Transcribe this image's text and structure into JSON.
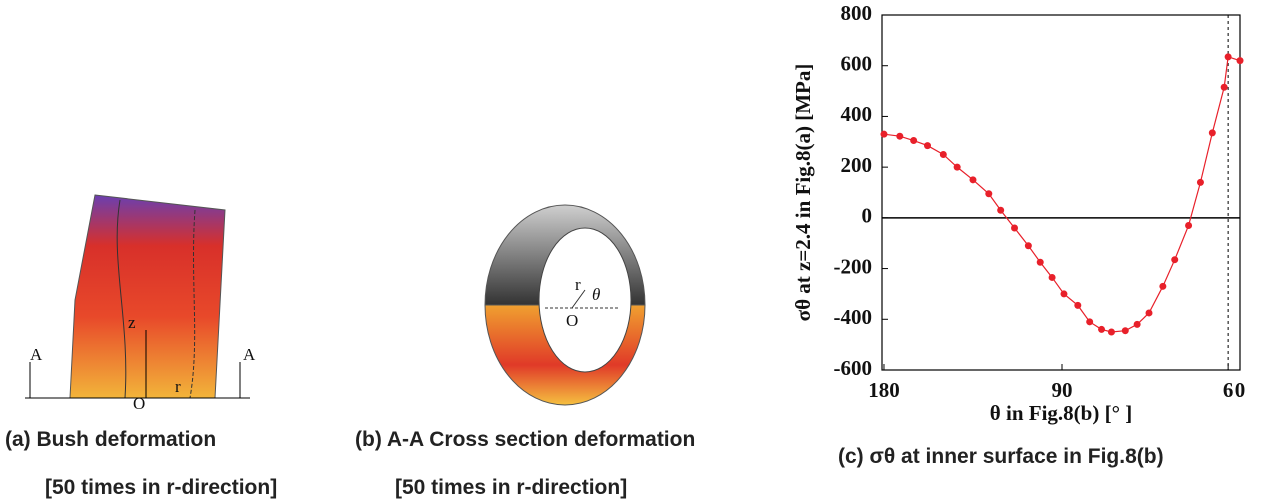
{
  "chart_data": {
    "type": "line",
    "y_label": "σθ at z=2.4 in Fig.8(a) [MPa]",
    "x_label": "θ in Fig.8(b) [° ]",
    "x": [
      180,
      172,
      165,
      158,
      150,
      143,
      135,
      127,
      121,
      114,
      107,
      101,
      95,
      89,
      82,
      76,
      70,
      65,
      58,
      52,
      46,
      39,
      33,
      26,
      20,
      14,
      8,
      6,
      0
    ],
    "series": [
      {
        "color": "#e8202a",
        "values": [
          330,
          322,
          305,
          285,
          250,
          200,
          150,
          95,
          30,
          -40,
          -110,
          -175,
          -235,
          -300,
          -345,
          -410,
          -440,
          -450,
          -445,
          -420,
          -375,
          -270,
          -165,
          -30,
          140,
          335,
          515,
          635,
          620
        ]
      }
    ],
    "xlim": [
      181,
      0
    ],
    "ylim": [
      -600,
      800
    ],
    "xticks": [
      180,
      90,
      6,
      0
    ],
    "yticks": [
      -600,
      -400,
      -200,
      0,
      200,
      400,
      600,
      800
    ]
  },
  "panels": {
    "a": {
      "caption": "(a) Bush deformation",
      "note": "[50 times in r-direction]",
      "labels": [
        "A",
        "A",
        "z",
        "O",
        "r"
      ]
    },
    "b": {
      "caption": "(b) A-A Cross section deformation",
      "note": "[50 times in r-direction]",
      "labels": [
        "r",
        "θ",
        "O"
      ]
    },
    "c": {
      "caption": "(c) σθ at inner surface in Fig.8(b)"
    }
  }
}
